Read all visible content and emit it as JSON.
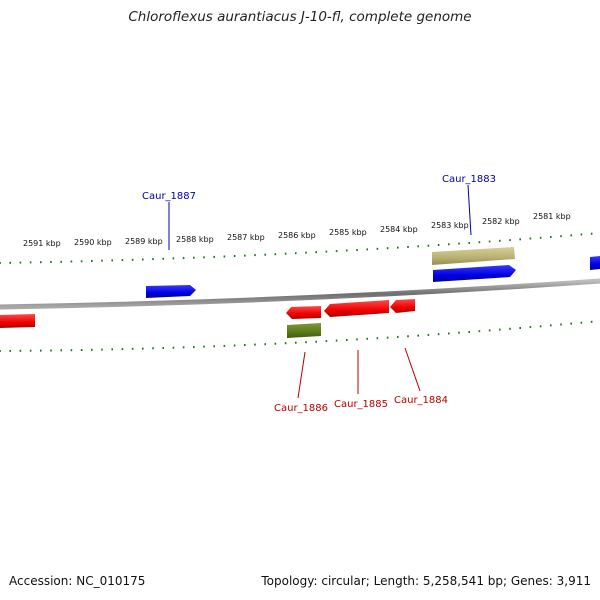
{
  "title": "Chloroflexus aurantiacus J-10-fl, complete genome",
  "footer": {
    "accession": "Accession: NC_010175",
    "topology": "Topology: circular; Length: 5,258,541 bp; Genes: 3,911"
  },
  "scale": {
    "labels": [
      "2591 kbp",
      "2590 kbp",
      "2589 kbp",
      "2588 kbp",
      "2587 kbp",
      "2586 kbp",
      "2585 kbp",
      "2584 kbp",
      "2583 kbp",
      "2582 kbp",
      "2581 kbp"
    ]
  },
  "gene_labels": {
    "caur_1887": "Caur_1887",
    "caur_1883": "Caur_1883",
    "caur_1886": "Caur_1886",
    "caur_1885": "Caur_1885",
    "caur_1884": "Caur_1884"
  },
  "colors": {
    "forward_gene": "#0000ee",
    "reverse_gene": "#ee0000",
    "forward_feature": "#b8b070",
    "reverse_feature": "#5a7a1a",
    "tick": "#1a7a1a",
    "backbone": "#888888",
    "forward_label": "#0000aa",
    "reverse_label": "#bb0000"
  }
}
